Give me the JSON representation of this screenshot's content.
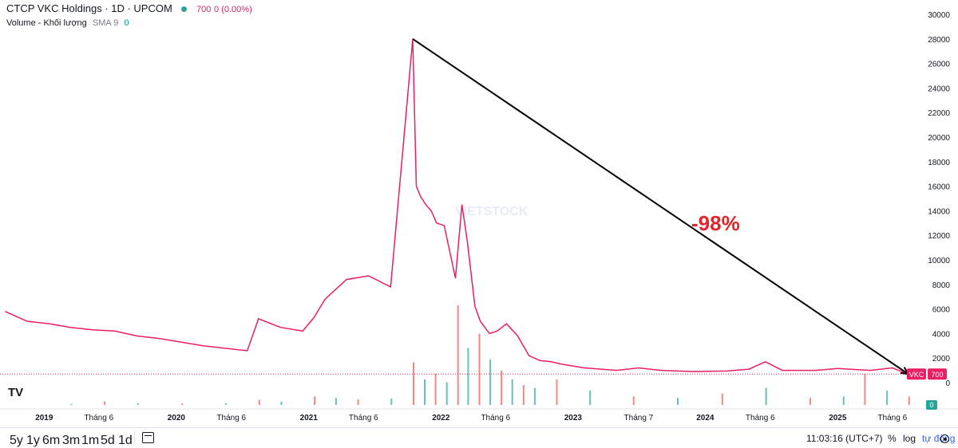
{
  "header": {
    "title": "CTCP VKC Holdings · 1D · UPCOM",
    "status_color": "#26a69a",
    "price": "700",
    "change": "0 (0.00%)",
    "volume_label": "Volume - Khối lượng",
    "sma_label": "SMA 9",
    "sma_value": "0"
  },
  "annotation": {
    "text": "-98%",
    "color": "#e0262b"
  },
  "price_badge": {
    "symbol": "VKC",
    "value": "700",
    "color": "#e91e63"
  },
  "volume_badge": {
    "value": "0",
    "color": "#26a69a"
  },
  "watermark": "VIETSTOCK",
  "bottom_bar": {
    "ranges": [
      "5y",
      "1y",
      "6m",
      "3m",
      "1m",
      "5d",
      "1d"
    ],
    "time": "11:03:16 (UTC+7)",
    "percent": "%",
    "log": "log",
    "auto": "tự động"
  },
  "chart_data": {
    "type": "line",
    "title": "CTCP VKC Holdings · 1D · UPCOM",
    "series": [
      {
        "name": "VKC",
        "color": "#e91e63",
        "x": [
          "2018-09",
          "2018-11",
          "2019-01",
          "2019-03",
          "2019-05",
          "2019-07",
          "2019-09",
          "2019-11",
          "2020-01",
          "2020-03",
          "2020-05",
          "2020-07",
          "2020-08",
          "2020-10",
          "2020-12",
          "2021-01",
          "2021-02",
          "2021-04",
          "2021-06",
          "2021-08",
          "2021-10-15",
          "2021-10-25",
          "2021-11-05",
          "2021-11-20",
          "2021-12-05",
          "2021-12-20",
          "2022-01-10",
          "2022-02-10",
          "2022-02-28",
          "2022-03-15",
          "2022-04-05",
          "2022-04-20",
          "2022-05-15",
          "2022-06-05",
          "2022-07-01",
          "2022-08-01",
          "2022-09-01",
          "2022-10-01",
          "2022-11-01",
          "2022-12-01",
          "2023-02-01",
          "2023-05-01",
          "2023-07-01",
          "2023-09-01",
          "2023-12-01",
          "2024-03-01",
          "2024-05-01",
          "2024-06-15",
          "2024-08-01",
          "2024-11-01",
          "2025-01-01",
          "2025-04-01",
          "2025-06-01",
          "2025-07-15"
        ],
        "values": [
          5800,
          5000,
          4800,
          4500,
          4300,
          4200,
          3800,
          3600,
          3300,
          3000,
          2800,
          2600,
          5200,
          4500,
          4200,
          5300,
          6800,
          8400,
          8700,
          7800,
          28000,
          16000,
          15200,
          14500,
          14000,
          13000,
          12800,
          8500,
          14500,
          11500,
          6200,
          5000,
          4000,
          4200,
          4800,
          3800,
          2200,
          1800,
          1700,
          1500,
          1200,
          1000,
          1200,
          1000,
          900,
          950,
          1100,
          1700,
          1000,
          1000,
          1150,
          1000,
          1200,
          700
        ]
      }
    ],
    "volume": {
      "name": "Volume - Khối lượng",
      "dates": [
        "2019-03",
        "2019-06",
        "2019-09",
        "2020-01",
        "2020-05",
        "2020-08",
        "2020-10",
        "2021-01",
        "2021-03",
        "2021-05",
        "2021-08",
        "2021-10",
        "2021-11",
        "2021-12",
        "2022-01",
        "2022-02",
        "2022-03",
        "2022-04",
        "2022-05",
        "2022-06",
        "2022-07",
        "2022-08",
        "2022-09",
        "2022-11",
        "2023-02",
        "2023-06",
        "2023-10",
        "2024-02",
        "2024-06",
        "2024-10",
        "2025-01",
        "2025-03",
        "2025-05",
        "2025-07"
      ],
      "values": [
        40,
        120,
        60,
        50,
        60,
        180,
        120,
        300,
        250,
        200,
        220,
        1500,
        900,
        1100,
        800,
        3500,
        2000,
        2500,
        1600,
        1200,
        900,
        700,
        600,
        900,
        500,
        300,
        250,
        400,
        600,
        250,
        300,
        1100,
        500,
        300
      ],
      "up_color": "#26a69a",
      "down_color": "#ef5350"
    },
    "yticks": [
      0,
      2000,
      4000,
      6000,
      8000,
      10000,
      12000,
      14000,
      16000,
      18000,
      20000,
      22000,
      24000,
      26000,
      28000,
      30000
    ],
    "ylim": [
      0,
      30000
    ],
    "xlim": [
      "2018-09-01",
      "2025-07-31"
    ],
    "xticks": [
      {
        "date": "2019-01-01",
        "label": "2019",
        "bold": true
      },
      {
        "date": "2019-06-01",
        "label": "Tháng 6",
        "bold": false
      },
      {
        "date": "2020-01-01",
        "label": "2020",
        "bold": true
      },
      {
        "date": "2020-06-01",
        "label": "Tháng 6",
        "bold": false
      },
      {
        "date": "2021-01-01",
        "label": "2021",
        "bold": true
      },
      {
        "date": "2021-06-01",
        "label": "Tháng 6",
        "bold": false
      },
      {
        "date": "2022-01-01",
        "label": "2022",
        "bold": true
      },
      {
        "date": "2022-06-01",
        "label": "Tháng 6",
        "bold": false
      },
      {
        "date": "2023-01-01",
        "label": "2023",
        "bold": true
      },
      {
        "date": "2023-07-01",
        "label": "Tháng 7",
        "bold": false
      },
      {
        "date": "2024-01-01",
        "label": "2024",
        "bold": true
      },
      {
        "date": "2024-06-01",
        "label": "Tháng 6",
        "bold": false
      },
      {
        "date": "2025-01-01",
        "label": "2025",
        "bold": true
      },
      {
        "date": "2025-06-01",
        "label": "Tháng 6",
        "bold": false
      }
    ],
    "trend_line": {
      "from": {
        "date": "2021-10-15",
        "value": 28000
      },
      "to": {
        "date": "2025-07-15",
        "value": 700
      }
    },
    "last_price": 700,
    "grid": false
  }
}
